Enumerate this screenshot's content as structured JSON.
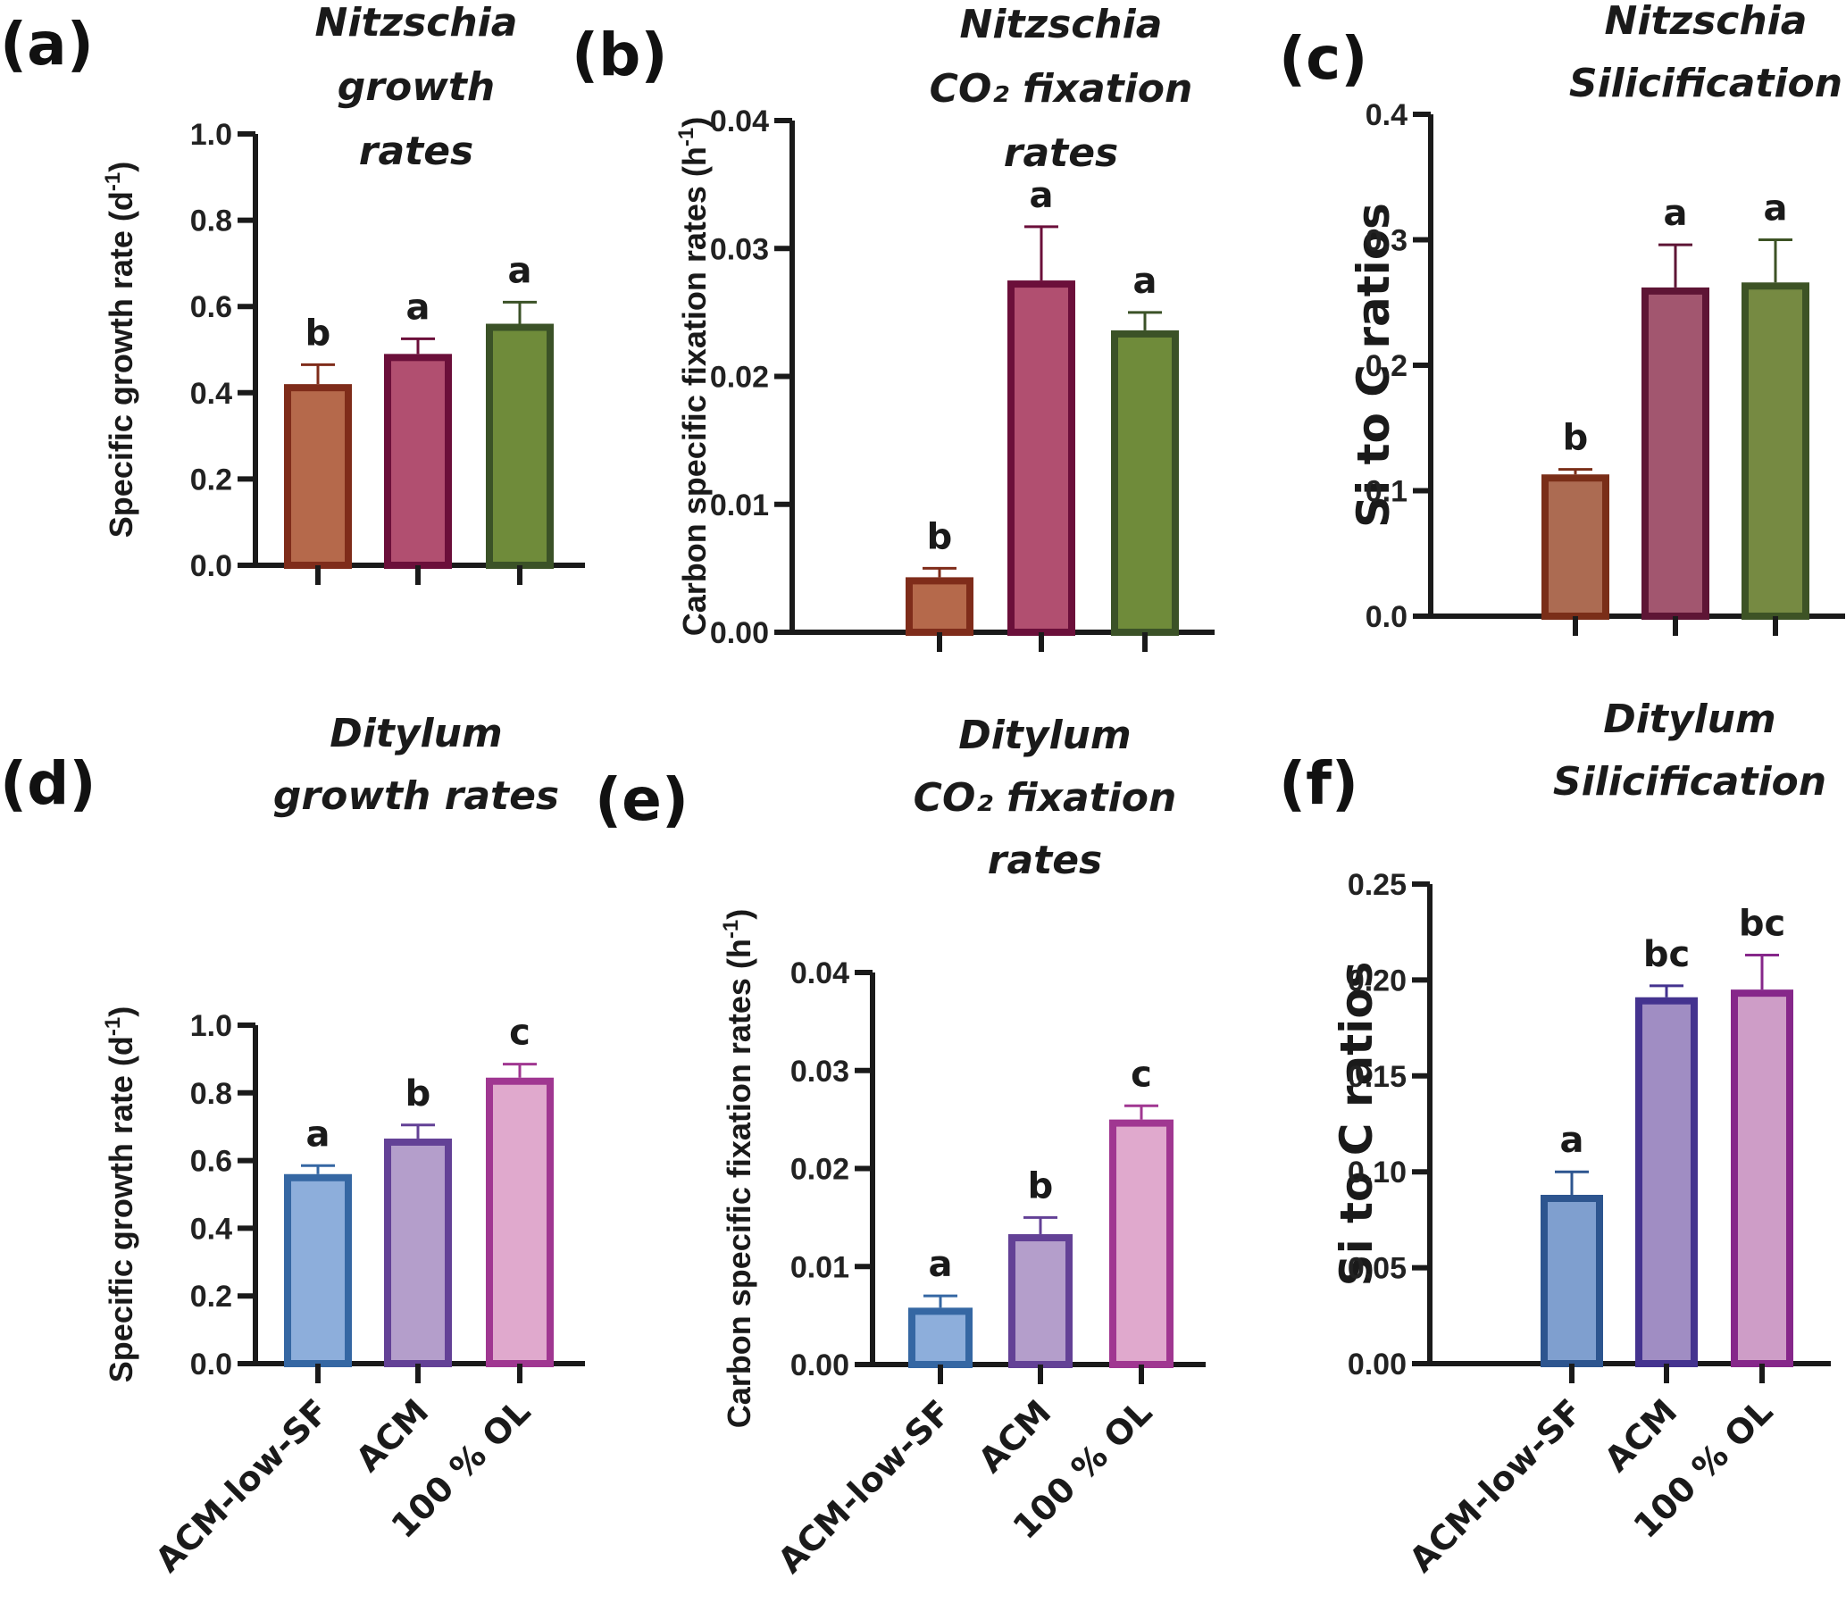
{
  "figure": {
    "panel_letters": [
      "(a)",
      "(b)",
      "(c)",
      "(d)",
      "(e)",
      "(f)"
    ]
  },
  "chart_data": [
    {
      "id": "a",
      "type": "bar",
      "panel_letter": "(a)",
      "title_lines": [
        "Nitzschia",
        "growth",
        "rates"
      ],
      "ylabel": "Specific growth rate (d",
      "ylabel_sup": "-1",
      "ylabel_close": ")",
      "ylim": [
        0,
        1.0
      ],
      "yticks": [
        0.0,
        0.2,
        0.4,
        0.6,
        0.8,
        1.0
      ],
      "ytick_labels": [
        "0.0",
        "0.2",
        "0.4",
        "0.6",
        "0.8",
        "1.0"
      ],
      "categories": [
        "",
        "",
        ""
      ],
      "values": [
        0.42,
        0.49,
        0.56
      ],
      "error_upper": [
        0.465,
        0.525,
        0.61
      ],
      "significance": [
        "b",
        "a",
        "a"
      ],
      "fill_colors": [
        "#B5694B",
        "#B14F70",
        "#6F8B3A"
      ],
      "stroke_colors": [
        "#7F2C1A",
        "#6B0F3A",
        "#3B5227"
      ],
      "grid": false
    },
    {
      "id": "b",
      "type": "bar",
      "panel_letter": "(b)",
      "title_lines": [
        "Nitzschia",
        "CO₂ fixation",
        "rates"
      ],
      "ylabel": "Carbon specific fixation rates (h",
      "ylabel_sup": "-1",
      "ylabel_close": ")",
      "ylim": [
        0,
        0.04
      ],
      "yticks": [
        0.0,
        0.01,
        0.02,
        0.03,
        0.04
      ],
      "ytick_labels": [
        "0.00",
        "0.01",
        "0.02",
        "0.03",
        "0.04"
      ],
      "categories": [
        "",
        "",
        ""
      ],
      "values": [
        0.0043,
        0.0275,
        0.0236
      ],
      "error_upper": [
        0.005,
        0.0317,
        0.025
      ],
      "significance": [
        "b",
        "a",
        "a"
      ],
      "fill_colors": [
        "#B5694B",
        "#B14F70",
        "#6F8B3A"
      ],
      "stroke_colors": [
        "#7F2C1A",
        "#6B0F3A",
        "#3B5227"
      ],
      "grid": false
    },
    {
      "id": "c",
      "type": "bar",
      "panel_letter": "(c)",
      "title_lines": [
        "Nitzschia",
        "Silicification"
      ],
      "ylabel": "Si to C ratios",
      "ylabel_sup": "",
      "ylabel_close": "",
      "ylim": [
        0,
        0.4
      ],
      "yticks": [
        0.0,
        0.1,
        0.2,
        0.3,
        0.4
      ],
      "ytick_labels": [
        "0.0",
        "0.1",
        "0.2",
        "0.3",
        "0.4"
      ],
      "categories": [
        "",
        "",
        ""
      ],
      "values": [
        0.113,
        0.262,
        0.266
      ],
      "error_upper": [
        0.117,
        0.296,
        0.3
      ],
      "significance": [
        "b",
        "a",
        "a"
      ],
      "fill_colors": [
        "#AC6B52",
        "#A2566F",
        "#768A42"
      ],
      "stroke_colors": [
        "#7A2E18",
        "#5E1535",
        "#3D5325"
      ],
      "grid": false
    },
    {
      "id": "d",
      "type": "bar",
      "panel_letter": "(d)",
      "title_lines": [
        "Ditylum",
        "growth rates"
      ],
      "ylabel": "Specific growth rate (d",
      "ylabel_sup": "-1",
      "ylabel_close": ")",
      "ylim": [
        0,
        1.0
      ],
      "yticks": [
        0.0,
        0.2,
        0.4,
        0.6,
        0.8,
        1.0
      ],
      "ytick_labels": [
        "0.0",
        "0.2",
        "0.4",
        "0.6",
        "0.8",
        "1.0"
      ],
      "categories": [
        "ACM-low-SF",
        "ACM",
        "100 % OL"
      ],
      "values": [
        0.56,
        0.665,
        0.845
      ],
      "error_upper": [
        0.585,
        0.705,
        0.885
      ],
      "significance": [
        "a",
        "b",
        "c"
      ],
      "fill_colors": [
        "#8DAEDB",
        "#B49ECB",
        "#E0A9CD"
      ],
      "stroke_colors": [
        "#3567A3",
        "#634196",
        "#A03791"
      ],
      "grid": false
    },
    {
      "id": "e",
      "type": "bar",
      "panel_letter": "(e)",
      "title_lines": [
        "Ditylum",
        "CO₂ fixation",
        "rates"
      ],
      "ylabel": "Carbon specific fixation rates (h",
      "ylabel_sup": "-1",
      "ylabel_close": ")",
      "ylim": [
        0,
        0.04
      ],
      "yticks": [
        0.0,
        0.01,
        0.02,
        0.03,
        0.04
      ],
      "ytick_labels": [
        "0.00",
        "0.01",
        "0.02",
        "0.03",
        "0.04"
      ],
      "categories": [
        "ACM-low-SF",
        "ACM",
        "100 % OL"
      ],
      "values": [
        0.0058,
        0.0133,
        0.025
      ],
      "error_upper": [
        0.007,
        0.015,
        0.0264
      ],
      "significance": [
        "a",
        "b",
        "c"
      ],
      "fill_colors": [
        "#8DAEDB",
        "#B49ECB",
        "#E0A9CD"
      ],
      "stroke_colors": [
        "#3567A3",
        "#634196",
        "#A03791"
      ],
      "grid": false
    },
    {
      "id": "f",
      "type": "bar",
      "panel_letter": "(f)",
      "title_lines": [
        "Ditylum",
        "Silicification"
      ],
      "ylabel": "Si to C ratios",
      "ylabel_sup": "",
      "ylabel_close": "",
      "ylim": [
        0,
        0.25
      ],
      "yticks": [
        0.0,
        0.05,
        0.1,
        0.15,
        0.2,
        0.25
      ],
      "ytick_labels": [
        "0.00",
        "0.05",
        "0.10",
        "0.15",
        "0.20",
        "0.25"
      ],
      "categories": [
        "ACM-low-SF",
        "ACM",
        "100 % OL"
      ],
      "values": [
        0.088,
        0.191,
        0.195
      ],
      "error_upper": [
        0.1,
        0.197,
        0.213
      ],
      "significance": [
        "a",
        "bc",
        "bc"
      ],
      "fill_colors": [
        "#7F9FCF",
        "#A08DC3",
        "#CE9DC7"
      ],
      "stroke_colors": [
        "#2D558F",
        "#44338F",
        "#86278A"
      ],
      "grid": false
    }
  ]
}
